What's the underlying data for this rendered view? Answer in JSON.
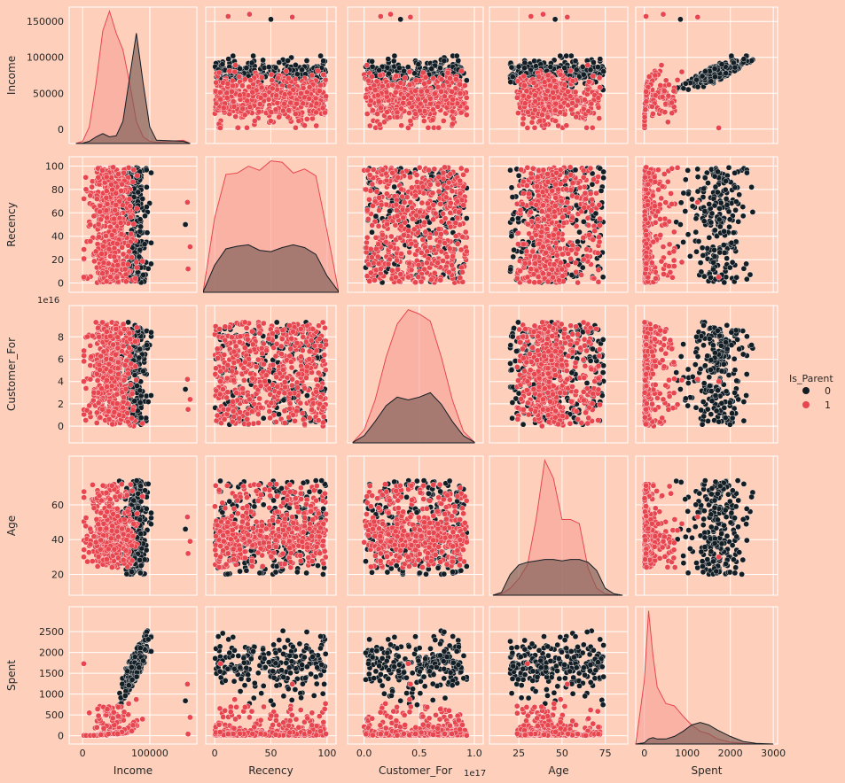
{
  "chart_data": {
    "type": "pairplot",
    "variables": [
      "Income",
      "Recency",
      "Customer_For",
      "Age",
      "Spent"
    ],
    "hue": "Is_Parent",
    "legend": {
      "title": "Is_Parent",
      "placement": "right-center",
      "entries": [
        {
          "label": "0",
          "color": "#131D24"
        },
        {
          "label": "1",
          "color": "#E8464F"
        }
      ]
    },
    "colors": {
      "background": "#FED0BB",
      "grid": "#FFFFFF",
      "parent_0": "#131D24",
      "parent_1": "#E8464F",
      "kde_fill_1": "#F8A199"
    },
    "grid": true,
    "axes": {
      "Income": {
        "label": "Income",
        "range": [
          -20000,
          170000
        ],
        "ticks": [
          0,
          50000,
          100000,
          150000
        ],
        "x_ticks": [
          0,
          100000
        ],
        "tick_labels": [
          "0",
          "50000",
          "100000",
          "150000"
        ],
        "x_tick_labels": [
          "0",
          "100000"
        ]
      },
      "Recency": {
        "label": "Recency",
        "range": [
          -8,
          108
        ],
        "ticks": [
          0,
          20,
          40,
          60,
          80,
          100
        ],
        "x_ticks": [
          0,
          50,
          100
        ],
        "tick_labels": [
          "0",
          "20",
          "40",
          "60",
          "80",
          "100"
        ],
        "x_tick_labels": [
          "0",
          "50",
          "100"
        ]
      },
      "Customer_For": {
        "label": "Customer_For",
        "range": [
          -0.15,
          1.08
        ],
        "ticks": [
          0,
          0.2,
          0.4,
          0.6,
          0.8
        ],
        "x_ticks": [
          0,
          0.5,
          1.0
        ],
        "tick_labels": [
          "0",
          "2",
          "4",
          "6",
          "8"
        ],
        "x_tick_labels": [
          "0.0",
          "0.5",
          "1.0"
        ],
        "y_offset_text": "1e16",
        "x_offset_text": "1e17"
      },
      "Age": {
        "label": "Age",
        "range": [
          8,
          88
        ],
        "ticks": [
          20,
          40,
          60
        ],
        "x_ticks": [
          25,
          50,
          75
        ],
        "tick_labels": [
          "20",
          "40",
          "60"
        ],
        "x_tick_labels": [
          "25",
          "50",
          "75"
        ]
      },
      "Spent": {
        "label": "Spent",
        "range": [
          -200,
          3100
        ],
        "ticks": [
          0,
          500,
          1000,
          1500,
          2000,
          2500
        ],
        "x_ticks": [
          0,
          1000,
          2000,
          3000
        ],
        "tick_labels": [
          "0",
          "500",
          "1000",
          "1500",
          "2000",
          "2500"
        ],
        "x_tick_labels": [
          "0",
          "1000",
          "2000",
          "3000"
        ]
      }
    },
    "kde_diagonal": {
      "Income": {
        "x": [
          -10000,
          0,
          10000,
          20000,
          30000,
          40000,
          50000,
          60000,
          70000,
          80000,
          90000,
          100000,
          110000,
          150000,
          160000
        ],
        "parent_0": [
          0,
          0.003,
          0.02,
          0.06,
          0.09,
          0.06,
          0.07,
          0.2,
          0.6,
          1.0,
          0.55,
          0.15,
          0.03,
          0.02,
          0
        ],
        "parent_1": [
          0,
          0.02,
          0.15,
          0.55,
          1.02,
          1.2,
          1.0,
          0.85,
          0.55,
          0.2,
          0.06,
          0.02,
          0.01,
          0.03,
          0
        ]
      },
      "Recency": {
        "x": [
          -10,
          0,
          10,
          20,
          30,
          40,
          50,
          60,
          70,
          80,
          90,
          100,
          110
        ],
        "parent_0": [
          0.01,
          0.2,
          0.32,
          0.34,
          0.35,
          0.31,
          0.3,
          0.33,
          0.35,
          0.33,
          0.28,
          0.12,
          0.01
        ],
        "parent_1": [
          0.02,
          0.55,
          0.87,
          0.88,
          0.93,
          0.9,
          0.97,
          0.96,
          0.88,
          0.91,
          0.86,
          0.45,
          0.02
        ]
      },
      "Customer_For": {
        "x": [
          -0.1,
          0.0,
          0.1,
          0.2,
          0.3,
          0.4,
          0.5,
          0.6,
          0.7,
          0.8,
          0.9,
          1.0
        ],
        "parent_0": [
          0.005,
          0.05,
          0.15,
          0.26,
          0.32,
          0.3,
          0.32,
          0.35,
          0.27,
          0.15,
          0.05,
          0.005
        ],
        "parent_1": [
          0.005,
          0.09,
          0.3,
          0.6,
          0.83,
          0.93,
          0.9,
          0.85,
          0.6,
          0.3,
          0.08,
          0.005
        ]
      },
      "Age": {
        "x": [
          10,
          15,
          20,
          25,
          30,
          35,
          40,
          45,
          50,
          55,
          60,
          65,
          70,
          75,
          80,
          85
        ],
        "parent_0": [
          0,
          0.02,
          0.15,
          0.22,
          0.24,
          0.25,
          0.26,
          0.26,
          0.25,
          0.26,
          0.26,
          0.24,
          0.18,
          0.05,
          0.01,
          0
        ],
        "parent_1": [
          0,
          0.01,
          0.05,
          0.12,
          0.22,
          0.55,
          0.98,
          0.85,
          0.55,
          0.55,
          0.52,
          0.2,
          0.05,
          0.01,
          0,
          0
        ]
      },
      "Spent": {
        "x": [
          -200,
          0,
          100,
          200,
          300,
          500,
          700,
          900,
          1100,
          1300,
          1500,
          1700,
          2000,
          2300,
          2600,
          3000
        ],
        "parent_0": [
          0,
          0.01,
          0.04,
          0.05,
          0.04,
          0.04,
          0.06,
          0.1,
          0.15,
          0.17,
          0.15,
          0.11,
          0.06,
          0.02,
          0.005,
          0
        ],
        "parent_1": [
          0,
          0.5,
          1.05,
          0.7,
          0.45,
          0.32,
          0.3,
          0.22,
          0.15,
          0.1,
          0.08,
          0.04,
          0.015,
          0.005,
          0,
          0
        ]
      }
    },
    "scatter_samples": {
      "Income": {
        "parent_0": [
          [
            80000,
            0.55
          ],
          [
            72000,
            0.18
          ],
          [
            75000,
            0.6
          ]
        ],
        "parent_1": [
          [
            45000,
            0.45
          ],
          [
            52000,
            0.7
          ],
          [
            38000,
            0.3
          ]
        ],
        "outliers": [
          {
            "value": 157000,
            "group": 1
          },
          {
            "value": 160000,
            "group": 1
          },
          {
            "value": 153000,
            "group": 0
          },
          {
            "value": 156000,
            "group": 1
          },
          {
            "value": 1730,
            "group": 1
          }
        ]
      }
    }
  }
}
